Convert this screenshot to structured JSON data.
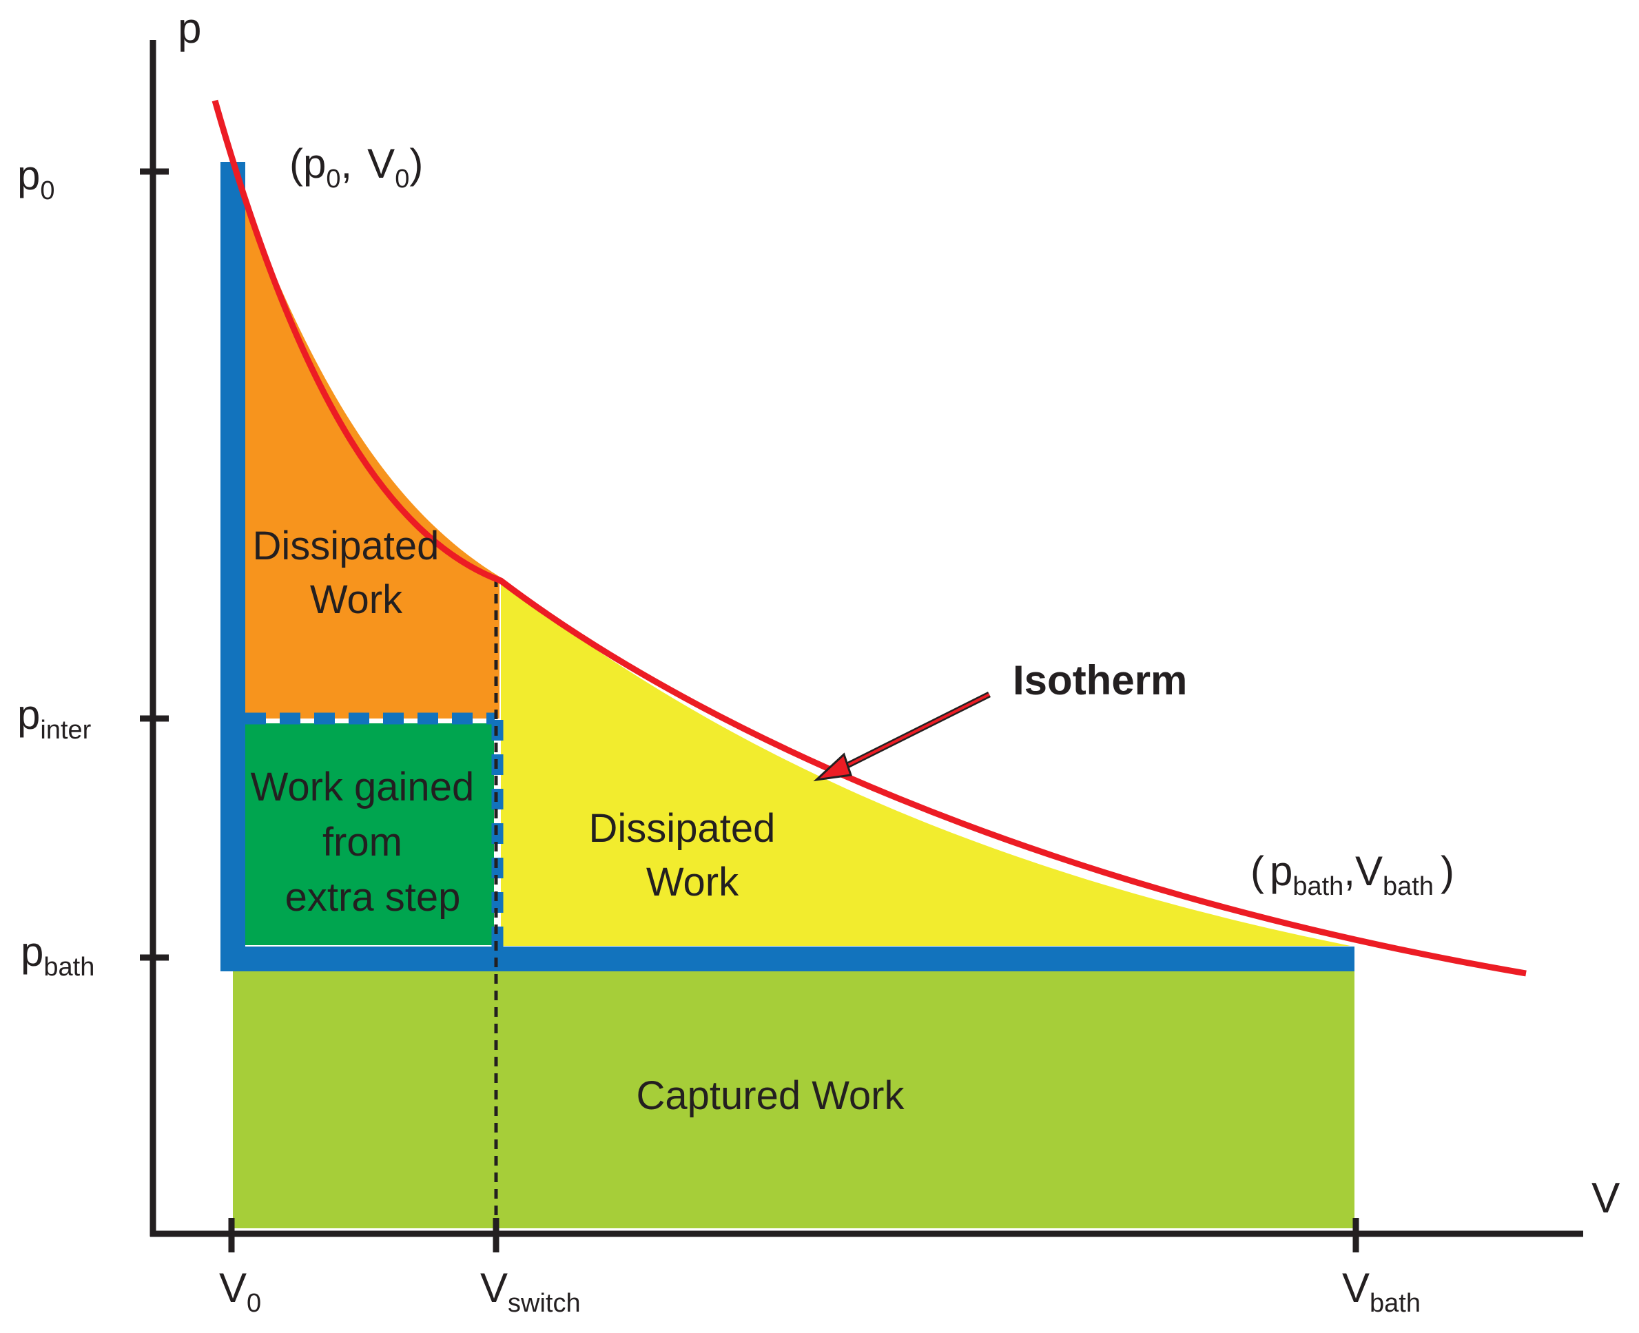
{
  "axes": {
    "y_label": "p",
    "x_label": "V",
    "y_ticks": [
      {
        "main": "p",
        "sub": "0"
      },
      {
        "main": "p",
        "sub": "inter"
      },
      {
        "main": "p",
        "sub": "bath"
      }
    ],
    "x_ticks": [
      {
        "main": "V",
        "sub": "0"
      },
      {
        "main": "V",
        "sub": "switch"
      },
      {
        "main": "V",
        "sub": "bath"
      }
    ]
  },
  "points": {
    "start": {
      "open": "(",
      "p": "p",
      "p_sub": "0",
      "sep": ",",
      "v": "V",
      "v_sub": "0",
      "close": ")"
    },
    "end": {
      "open": "(",
      "p": "p",
      "p_sub": "bath",
      "sep": ",",
      "v": "V",
      "v_sub": "bath",
      "close": ")"
    }
  },
  "regions": {
    "dissipated_upper": [
      "Dissipated",
      "Work"
    ],
    "work_gained": [
      "Work gained",
      "from",
      "extra step"
    ],
    "dissipated_lower": [
      "Dissipated",
      "Work"
    ],
    "captured": "Captured Work"
  },
  "isotherm_label": "Isotherm",
  "colors": {
    "isotherm": "#ec1c24",
    "process_path": "#1273bd",
    "dissipated_upper": "#f7941d",
    "work_gained": "#00a54f",
    "dissipated_lower": "#f2ec2e",
    "captured": "#a6ce39",
    "axis": "#231f20"
  }
}
